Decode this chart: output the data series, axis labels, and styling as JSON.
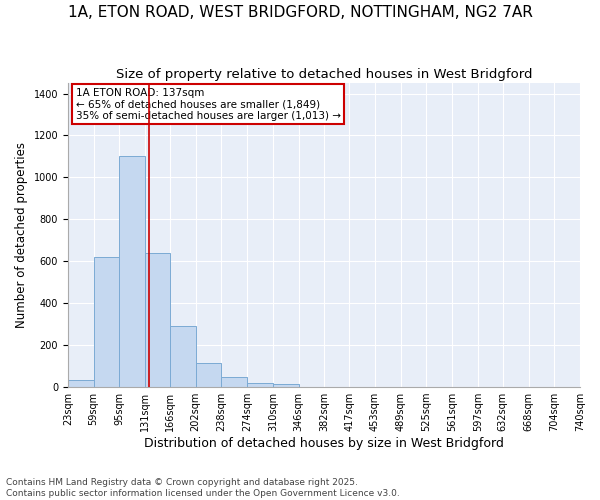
{
  "title_line1": "1A, ETON ROAD, WEST BRIDGFORD, NOTTINGHAM, NG2 7AR",
  "title_line2": "Size of property relative to detached houses in West Bridgford",
  "xlabel": "Distribution of detached houses by size in West Bridgford",
  "ylabel": "Number of detached properties",
  "bar_left_edges": [
    23,
    59,
    95,
    131,
    166,
    202,
    238,
    274,
    310,
    346,
    382,
    417,
    453,
    489,
    525,
    561,
    597,
    632,
    668,
    704
  ],
  "bar_widths": [
    36,
    36,
    36,
    35,
    36,
    36,
    36,
    36,
    36,
    36,
    35,
    36,
    36,
    36,
    36,
    36,
    35,
    36,
    36,
    36
  ],
  "bar_heights": [
    35,
    620,
    1100,
    640,
    290,
    115,
    50,
    20,
    15,
    0,
    0,
    0,
    0,
    0,
    0,
    0,
    0,
    0,
    0,
    0
  ],
  "bar_color": "#c5d8f0",
  "bar_edgecolor": "#7baad4",
  "bar_linewidth": 0.7,
  "ylim": [
    0,
    1450
  ],
  "yticks": [
    0,
    200,
    400,
    600,
    800,
    1000,
    1200,
    1400
  ],
  "xlim_left": 23,
  "xlim_right": 740,
  "xtick_positions": [
    23,
    59,
    95,
    131,
    166,
    202,
    238,
    274,
    310,
    346,
    382,
    417,
    453,
    489,
    525,
    561,
    597,
    632,
    668,
    704,
    740
  ],
  "xtick_labels": [
    "23sqm",
    "59sqm",
    "95sqm",
    "131sqm",
    "166sqm",
    "202sqm",
    "238sqm",
    "274sqm",
    "310sqm",
    "346sqm",
    "382sqm",
    "417sqm",
    "453sqm",
    "489sqm",
    "525sqm",
    "561sqm",
    "597sqm",
    "632sqm",
    "668sqm",
    "704sqm",
    "740sqm"
  ],
  "vline_x": 137,
  "vline_color": "#cc0000",
  "vline_linewidth": 1.2,
  "annotation_text": "1A ETON ROAD: 137sqm\n← 65% of detached houses are smaller (1,849)\n35% of semi-detached houses are larger (1,013) →",
  "annotation_box_edgecolor": "#cc0000",
  "annotation_fontsize": 7.5,
  "plot_bg_color": "#e8eef8",
  "fig_bg_color": "#ffffff",
  "grid_color": "#ffffff",
  "footer_line1": "Contains HM Land Registry data © Crown copyright and database right 2025.",
  "footer_line2": "Contains public sector information licensed under the Open Government Licence v3.0.",
  "title1_fontsize": 11,
  "title2_fontsize": 9.5,
  "ylabel_fontsize": 8.5,
  "xlabel_fontsize": 9,
  "tick_fontsize": 7,
  "footer_fontsize": 6.5
}
